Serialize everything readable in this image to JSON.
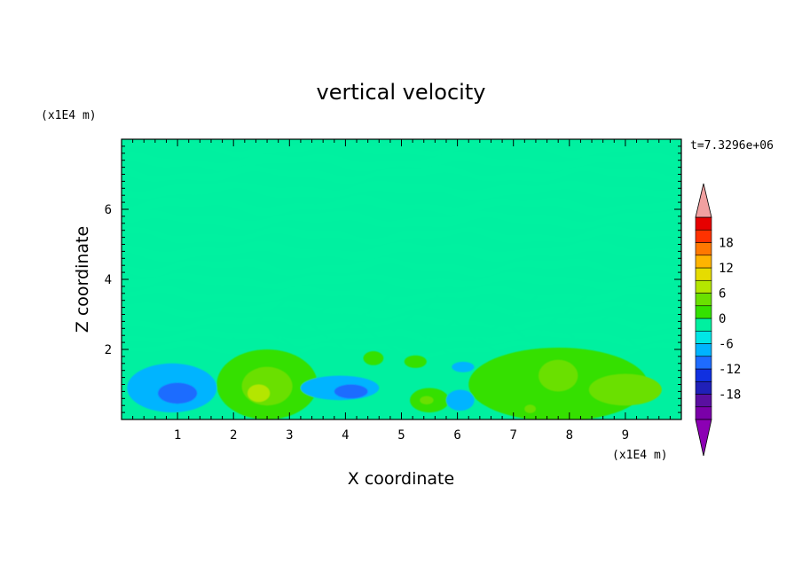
{
  "chart_data": {
    "type": "heatmap",
    "title": "vertical velocity",
    "xlabel": "X coordinate",
    "ylabel": "Z coordinate",
    "x_unit": "(x1E4 m)",
    "y_unit": "(x1E4 m)",
    "time_label": "t=7.3296e+06",
    "xlim": [
      0,
      10
    ],
    "ylim": [
      0,
      8
    ],
    "x_ticks": [
      1,
      2,
      3,
      4,
      5,
      6,
      7,
      8,
      9
    ],
    "y_ticks": [
      2,
      4,
      6
    ],
    "colorbar": {
      "levels": [
        -21,
        -18,
        -15,
        -12,
        -9,
        -6,
        -3,
        0,
        3,
        6,
        9,
        12,
        15,
        18,
        21
      ],
      "colors": [
        "#7a00a8",
        "#5a0fa0",
        "#2020b8",
        "#1030e0",
        "#1e6cff",
        "#00b4ff",
        "#00e6e6",
        "#00f0a0",
        "#34e000",
        "#6ae000",
        "#b4e600",
        "#e6dc00",
        "#ffb400",
        "#ff7800",
        "#ff3200",
        "#e60000"
      ],
      "over_color": "#f0a0a0",
      "under_color": "#8c00b4",
      "tick_labels": [
        "18",
        "12",
        "6",
        "0",
        "-6",
        "-12",
        "-18"
      ],
      "tick_values": [
        18,
        12,
        6,
        0,
        -6,
        -12,
        -18
      ]
    },
    "blobs": [
      {
        "x": 0.9,
        "z": 0.9,
        "rx": 0.8,
        "rz": 0.7,
        "value": -3.5
      },
      {
        "x": 1.0,
        "z": 0.75,
        "rx": 0.35,
        "rz": 0.3,
        "value": -7
      },
      {
        "x": 2.6,
        "z": 1.0,
        "rx": 0.9,
        "rz": 1.0,
        "value": 3.5
      },
      {
        "x": 2.6,
        "z": 0.95,
        "rx": 0.45,
        "rz": 0.55,
        "value": 7
      },
      {
        "x": 2.45,
        "z": 0.75,
        "rx": 0.2,
        "rz": 0.25,
        "value": 10
      },
      {
        "x": 3.9,
        "z": 0.9,
        "rx": 0.7,
        "rz": 0.35,
        "value": -3.5
      },
      {
        "x": 4.1,
        "z": 0.8,
        "rx": 0.3,
        "rz": 0.2,
        "value": -7
      },
      {
        "x": 5.5,
        "z": 0.55,
        "rx": 0.35,
        "rz": 0.35,
        "value": 3.5
      },
      {
        "x": 5.45,
        "z": 0.55,
        "rx": 0.12,
        "rz": 0.12,
        "value": 8
      },
      {
        "x": 6.05,
        "z": 0.55,
        "rx": 0.25,
        "rz": 0.3,
        "value": -3.5
      },
      {
        "x": 6.1,
        "z": 1.5,
        "rx": 0.2,
        "rz": 0.15,
        "value": -3.5
      },
      {
        "x": 7.8,
        "z": 1.0,
        "rx": 1.6,
        "rz": 1.05,
        "value": 3.5
      },
      {
        "x": 7.8,
        "z": 1.25,
        "rx": 0.35,
        "rz": 0.45,
        "value": 7
      },
      {
        "x": 9.0,
        "z": 0.85,
        "rx": 0.65,
        "rz": 0.45,
        "value": 7
      },
      {
        "x": 7.3,
        "z": 0.3,
        "rx": 0.1,
        "rz": 0.12,
        "value": 8
      },
      {
        "x": 4.5,
        "z": 1.75,
        "rx": 0.18,
        "rz": 0.2,
        "value": 3.5
      },
      {
        "x": 5.25,
        "z": 1.65,
        "rx": 0.2,
        "rz": 0.18,
        "value": 3.5
      }
    ]
  }
}
